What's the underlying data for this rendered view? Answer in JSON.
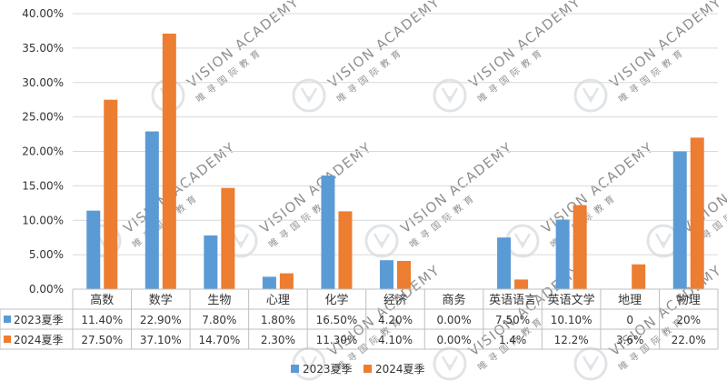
{
  "chart_data": {
    "type": "bar",
    "categories": [
      "高数",
      "数学",
      "生物",
      "心理",
      "化学",
      "经济",
      "商务",
      "英语语言",
      "英语文学",
      "地理",
      "物理"
    ],
    "series": [
      {
        "name": "2023夏季",
        "color": "#5b9bd5",
        "values": [
          11.4,
          22.9,
          7.8,
          1.8,
          16.5,
          4.2,
          0,
          7.5,
          10.1,
          0,
          20
        ],
        "table_labels": [
          "11.40%",
          "22.90%",
          "7.80%",
          "1.80%",
          "16.50%",
          "4.20%",
          "0.00%",
          "7.50%",
          "10.10%",
          "0",
          "20%"
        ]
      },
      {
        "name": "2024夏季",
        "color": "#ed7d31",
        "values": [
          27.5,
          37.1,
          14.7,
          2.3,
          11.3,
          4.1,
          0,
          1.4,
          12.2,
          3.6,
          22.0
        ],
        "table_labels": [
          "27.50%",
          "37.10%",
          "14.70%",
          "2.30%",
          "11.30%",
          "4.10%",
          "0.00%",
          "1.4%",
          "12.2%",
          "3.6%",
          "22.0%"
        ]
      }
    ],
    "ylim": [
      0,
      40
    ],
    "yticks": [
      "0.00%",
      "5.00%",
      "10.00%",
      "15.00%",
      "20.00%",
      "25.00%",
      "30.00%",
      "35.00%",
      "40.00%"
    ],
    "grid": true,
    "legend": "bottom",
    "data_table": true
  },
  "watermark": {
    "text": "VISION ACADEMY",
    "subtext": "唯 寻 国 际 教 育"
  }
}
